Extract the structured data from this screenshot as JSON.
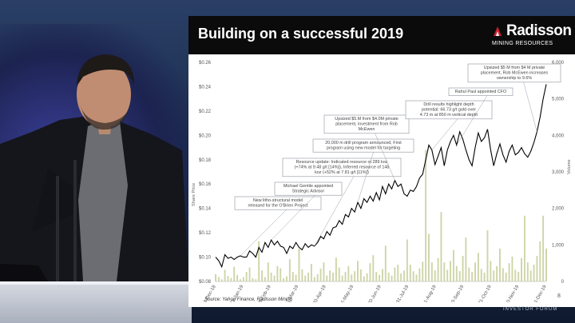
{
  "slide": {
    "title": "Building on a successful 2019",
    "logo_word": "Radisson",
    "logo_sub": "MINING RESOURCES",
    "source": "Source: Yahoo Finance, Radisson Mining",
    "page_number": "8"
  },
  "event": {
    "watermark": "INVESTOR FORUM"
  },
  "colors": {
    "title_bar": "#0b0b0b",
    "price_line": "#000000",
    "volume_bars": "#cfd5a8",
    "logo_accent": "#c8202f"
  },
  "chart_data": {
    "type": "line",
    "ylabel": "Share Price",
    "y2label": "Volume",
    "ylim": [
      0.08,
      0.26
    ],
    "y_ticks": [
      "$0.08",
      "$0.10",
      "$0.12",
      "$0.14",
      "$0.16",
      "$0.18",
      "$0.20",
      "$0.22",
      "$0.24",
      "$0.26"
    ],
    "y_tick_values": [
      0.08,
      0.1,
      0.12,
      0.14,
      0.16,
      0.18,
      0.2,
      0.22,
      0.24,
      0.26
    ],
    "y2lim": [
      0,
      6000
    ],
    "y2_ticks": [
      "0",
      "1,000",
      "2,000",
      "3,000",
      "4,000",
      "5,000",
      "6,000"
    ],
    "y2_tick_values": [
      0,
      1000,
      2000,
      3000,
      4000,
      5000,
      6000
    ],
    "x_ticks": [
      "31-Dec-18",
      "31-Jan-19",
      "28-Feb-19",
      "31-Mar-19",
      "30-Apr-19",
      "31-May-19",
      "30-Jun-19",
      "31-Jul-19",
      "31-Aug-19",
      "30-Sep-19",
      "31-Oct-19",
      "30-Nov-19",
      "31-Dec-19"
    ],
    "series": [
      {
        "kind": "price",
        "values": [
          0.1,
          0.097,
          0.092,
          0.102,
          0.099,
          0.1,
          0.098,
          0.1,
          0.101,
          0.1,
          0.1,
          0.105,
          0.103,
          0.1,
          0.108,
          0.104,
          0.112,
          0.108,
          0.114,
          0.11,
          0.113,
          0.109,
          0.108,
          0.103,
          0.109,
          0.107,
          0.112,
          0.108,
          0.106,
          0.111,
          0.108,
          0.11,
          0.109,
          0.112,
          0.117,
          0.115,
          0.121,
          0.118,
          0.124,
          0.125,
          0.13,
          0.127,
          0.135,
          0.133,
          0.14,
          0.137,
          0.145,
          0.14,
          0.148,
          0.145,
          0.15,
          0.146,
          0.153,
          0.147,
          0.158,
          0.152,
          0.16,
          0.156,
          0.163,
          0.158,
          0.16,
          0.152,
          0.15,
          0.155,
          0.154,
          0.158,
          0.165,
          0.168,
          0.18,
          0.192,
          0.188,
          0.176,
          0.183,
          0.19,
          0.175,
          0.188,
          0.195,
          0.2,
          0.192,
          0.203,
          0.197,
          0.188,
          0.18,
          0.175,
          0.19,
          0.202,
          0.195,
          0.198,
          0.205,
          0.188,
          0.175,
          0.185,
          0.193,
          0.184,
          0.178,
          0.187,
          0.192,
          0.184,
          0.186,
          0.19,
          0.185,
          0.182,
          0.187,
          0.194,
          0.203,
          0.215,
          0.23,
          0.242
        ]
      },
      {
        "kind": "volume",
        "values": [
          200,
          120,
          60,
          320,
          150,
          90,
          400,
          180,
          60,
          120,
          260,
          380,
          90,
          60,
          1100,
          300,
          120,
          520,
          240,
          160,
          420,
          360,
          90,
          140,
          610,
          260,
          180,
          900,
          330,
          160,
          240,
          480,
          120,
          200,
          350,
          520,
          160,
          300,
          240,
          650,
          380,
          160,
          260,
          420,
          190,
          280,
          560,
          330,
          140,
          220,
          500,
          720,
          260,
          180,
          340,
          980,
          240,
          160,
          380,
          460,
          220,
          300,
          1150,
          460,
          280,
          190,
          360,
          540,
          3600,
          1300,
          520,
          300,
          640,
          1900,
          520,
          320,
          560,
          860,
          420,
          280,
          700,
          1200,
          380,
          260,
          520,
          780,
          340,
          240,
          1400,
          560,
          300,
          420,
          900,
          360,
          240,
          500,
          680,
          320,
          260,
          640,
          1800,
          520,
          300,
          460,
          700,
          1100,
          1800,
          900
        ]
      }
    ],
    "annotations": [
      {
        "lines": [
          "New litho-structural model",
          "released for the O'Brien Project"
        ]
      },
      {
        "lines": [
          "Michael Gentile appointed",
          "Strategic Advisor"
        ]
      },
      {
        "lines": [
          "Resource update: Indicated resource of 289 koz",
          "(+74% at 9.48 g/t [14%]), Inferred resource of 148",
          "koz (+52% at 7.81 g/t [11%])"
        ]
      },
      {
        "lines": [
          "20,000 m drill program announced, First",
          "program using new model for targeting"
        ]
      },
      {
        "lines": [
          "Upsized $5.M from $4.0M private",
          "placement, investment from Rob",
          "McEwen"
        ]
      },
      {
        "lines": [
          "Drill results highlight depth",
          "potential: 66.73 g/t gold over",
          "4.73 m at 850 m vertical depth"
        ]
      },
      {
        "lines": [
          "Rahul Paul appointed CFO"
        ]
      },
      {
        "lines": [
          "Upsized $5 M from $4 M private",
          "placement, Rob McEwen increases",
          "ownership to 9.6%"
        ]
      }
    ]
  }
}
